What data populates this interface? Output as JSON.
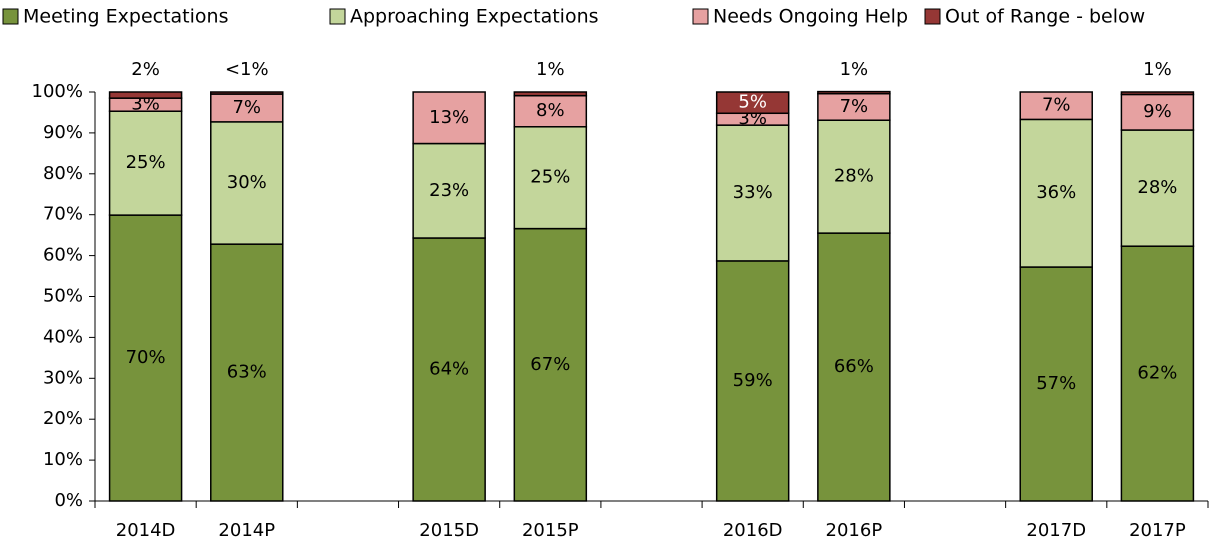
{
  "chart_data": {
    "type": "stacked_bar",
    "categories": [
      "2014D",
      "2014P",
      null,
      "2015D",
      "2015P",
      null,
      "2016D",
      "2016P",
      null,
      "2017D",
      "2017P"
    ],
    "series": [
      {
        "name": "Meeting Expectations",
        "color": "#77933c",
        "values": [
          69.9,
          62.8,
          null,
          64.3,
          66.6,
          null,
          58.7,
          65.5,
          null,
          57.2,
          62.3
        ],
        "value_labels": [
          "70%",
          "63%",
          null,
          "64%",
          "67%",
          null,
          "59%",
          "66%",
          null,
          "57%",
          "62%"
        ]
      },
      {
        "name": "Approaching Expectations",
        "color": "#c3d69b",
        "values": [
          25.4,
          29.9,
          null,
          23.1,
          24.9,
          null,
          33.2,
          27.6,
          null,
          36.1,
          28.4
        ],
        "value_labels": [
          "25%",
          "30%",
          null,
          "23%",
          "25%",
          null,
          "33%",
          "28%",
          null,
          "36%",
          "28%"
        ]
      },
      {
        "name": "Needs Ongoing Help",
        "color": "#e6a1a1",
        "values": [
          3.2,
          6.8,
          null,
          12.6,
          7.6,
          null,
          2.9,
          6.5,
          null,
          6.7,
          8.7
        ],
        "value_labels": [
          "3%",
          "7%",
          null,
          "13%",
          "8%",
          null,
          "3%",
          "7%",
          null,
          "7%",
          "9%"
        ]
      },
      {
        "name": "Out of Range - below",
        "color": "#953735",
        "values": [
          1.5,
          0.5,
          null,
          null,
          0.9,
          null,
          5.2,
          0.5,
          null,
          null,
          0.6
        ],
        "value_labels": [
          "2%",
          "<1%",
          null,
          null,
          "1%",
          null,
          "5%",
          "1%",
          null,
          null,
          "1%"
        ]
      }
    ],
    "ylim": [
      0,
      100
    ],
    "yticks": [
      {
        "value": 0,
        "label": "0%"
      },
      {
        "value": 10,
        "label": "10%"
      },
      {
        "value": 20,
        "label": "20%"
      },
      {
        "value": 30,
        "label": "30%"
      },
      {
        "value": 40,
        "label": "40%"
      },
      {
        "value": 50,
        "label": "50%"
      },
      {
        "value": 60,
        "label": "60%"
      },
      {
        "value": 70,
        "label": "70%"
      },
      {
        "value": 80,
        "label": "80%"
      },
      {
        "value": 90,
        "label": "90%"
      },
      {
        "value": 100,
        "label": "100%"
      }
    ],
    "legend": "top"
  }
}
